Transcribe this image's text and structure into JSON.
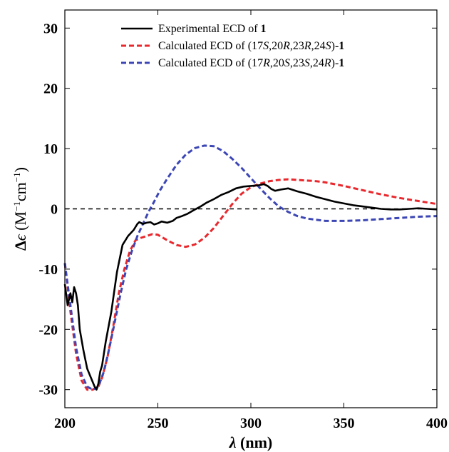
{
  "chart_data": {
    "type": "line",
    "xlabel": {
      "symbol": "λ",
      "unit": " (nm)"
    },
    "ylabel": {
      "delta": "Δ",
      "eps": "ϵ",
      "open": " (M",
      "sup1": "−1",
      "mid": "cm",
      "sup2": "−1",
      "close": ")"
    },
    "xlim": [
      200,
      400
    ],
    "ylim": [
      -33,
      33
    ],
    "xticks": [
      200,
      250,
      300,
      350,
      400
    ],
    "yticks": [
      -30,
      -20,
      -10,
      0,
      10,
      20,
      30
    ],
    "zero_line": true,
    "legend_position": "top-left",
    "series": [
      {
        "name": "Experimental ECD of 1",
        "legend": [
          {
            "t": "Experimental ECD of "
          },
          {
            "t": "1",
            "style": "bd"
          }
        ],
        "color": "#000000",
        "dash": "solid",
        "x": [
          200,
          201.5,
          203,
          204,
          205,
          206,
          207,
          208,
          210,
          212,
          214,
          216,
          217,
          218,
          219,
          220,
          222,
          225,
          228,
          231,
          234,
          237,
          239,
          240,
          242,
          244,
          246,
          248,
          250,
          252,
          255,
          258,
          260,
          263,
          266,
          270,
          273,
          276,
          280,
          284,
          288,
          292,
          296,
          300,
          304,
          307,
          309,
          311,
          313,
          316,
          320,
          325,
          330,
          335,
          340,
          345,
          350,
          355,
          360,
          365,
          370,
          375,
          380,
          385,
          390,
          395,
          400
        ],
        "y": [
          -12.5,
          -16,
          -14,
          -15.5,
          -13,
          -14,
          -16,
          -20,
          -23.5,
          -26.5,
          -28,
          -29.5,
          -30,
          -29,
          -27,
          -26,
          -22,
          -17,
          -10.5,
          -6,
          -4.5,
          -3.5,
          -2.5,
          -2.2,
          -2.5,
          -2.3,
          -2.2,
          -2.6,
          -2.4,
          -2.1,
          -2.3,
          -2.0,
          -1.5,
          -1.2,
          -0.8,
          -0.1,
          0.4,
          1.0,
          1.6,
          2.3,
          2.8,
          3.4,
          3.7,
          3.8,
          3.9,
          4.1,
          3.8,
          3.3,
          3.0,
          3.2,
          3.4,
          2.9,
          2.5,
          2.0,
          1.6,
          1.2,
          0.9,
          0.6,
          0.4,
          0.2,
          0.0,
          -0.1,
          -0.1,
          0.0,
          0.1,
          0.0,
          -0.1
        ]
      },
      {
        "name": "Calculated ECD of (17S,20R,23R,24S)-1",
        "legend": [
          {
            "t": "Calculated ECD of (17"
          },
          {
            "t": "S",
            "style": "it"
          },
          {
            "t": ",20"
          },
          {
            "t": "R",
            "style": "it"
          },
          {
            "t": ",23"
          },
          {
            "t": "R",
            "style": "it"
          },
          {
            "t": ",24"
          },
          {
            "t": "S",
            "style": "it"
          },
          {
            "t": ")-"
          },
          {
            "t": "1",
            "style": "bd"
          }
        ],
        "color": "#e8282d",
        "dash": "dashed",
        "x": [
          200,
          203,
          206,
          209,
          212,
          215,
          218,
          220,
          223,
          226,
          229,
          232,
          235,
          238,
          241,
          244,
          247,
          250,
          255,
          260,
          265,
          270,
          275,
          280,
          285,
          290,
          295,
          300,
          305,
          310,
          315,
          320,
          325,
          330,
          335,
          340,
          345,
          350,
          360,
          370,
          380,
          390,
          400
        ],
        "y": [
          -9,
          -17,
          -24,
          -28.5,
          -30,
          -30,
          -29.5,
          -28,
          -24.5,
          -19.5,
          -14,
          -10,
          -7,
          -5.2,
          -4.8,
          -4.5,
          -4.2,
          -4.3,
          -5.2,
          -6.0,
          -6.3,
          -5.9,
          -4.8,
          -3.2,
          -1.2,
          0.8,
          2.5,
          3.6,
          4.2,
          4.6,
          4.8,
          4.9,
          4.8,
          4.7,
          4.6,
          4.4,
          4.1,
          3.8,
          3.1,
          2.4,
          1.8,
          1.3,
          0.8
        ]
      },
      {
        "name": "Calculated ECD of (17R,20S,23S,24R)-1",
        "legend": [
          {
            "t": "Calculated ECD of (17"
          },
          {
            "t": "R",
            "style": "it"
          },
          {
            "t": ",20"
          },
          {
            "t": "S",
            "style": "it"
          },
          {
            "t": ",23"
          },
          {
            "t": "S",
            "style": "it"
          },
          {
            "t": ",24"
          },
          {
            "t": "R",
            "style": "it"
          },
          {
            "t": ")-"
          },
          {
            "t": "1",
            "style": "bd"
          }
        ],
        "color": "#3c46b4",
        "dash": "dashed",
        "x": [
          200,
          203,
          206,
          209,
          212,
          215,
          218,
          221,
          224,
          227,
          230,
          233,
          236,
          239,
          242,
          245,
          248,
          251,
          255,
          260,
          265,
          270,
          275,
          280,
          285,
          290,
          295,
          300,
          305,
          310,
          315,
          320,
          325,
          330,
          340,
          350,
          360,
          370,
          380,
          390,
          400
        ],
        "y": [
          -9,
          -16,
          -23,
          -27.5,
          -29.5,
          -30,
          -29.5,
          -27,
          -23,
          -18.5,
          -14,
          -10,
          -7,
          -4.5,
          -2.5,
          -0.5,
          1.2,
          3.0,
          5.0,
          7.3,
          9.0,
          10.1,
          10.5,
          10.4,
          9.6,
          8.3,
          6.8,
          5.1,
          3.4,
          1.8,
          0.4,
          -0.5,
          -1.2,
          -1.6,
          -2.0,
          -2.0,
          -1.9,
          -1.7,
          -1.5,
          -1.3,
          -1.2
        ]
      }
    ]
  }
}
